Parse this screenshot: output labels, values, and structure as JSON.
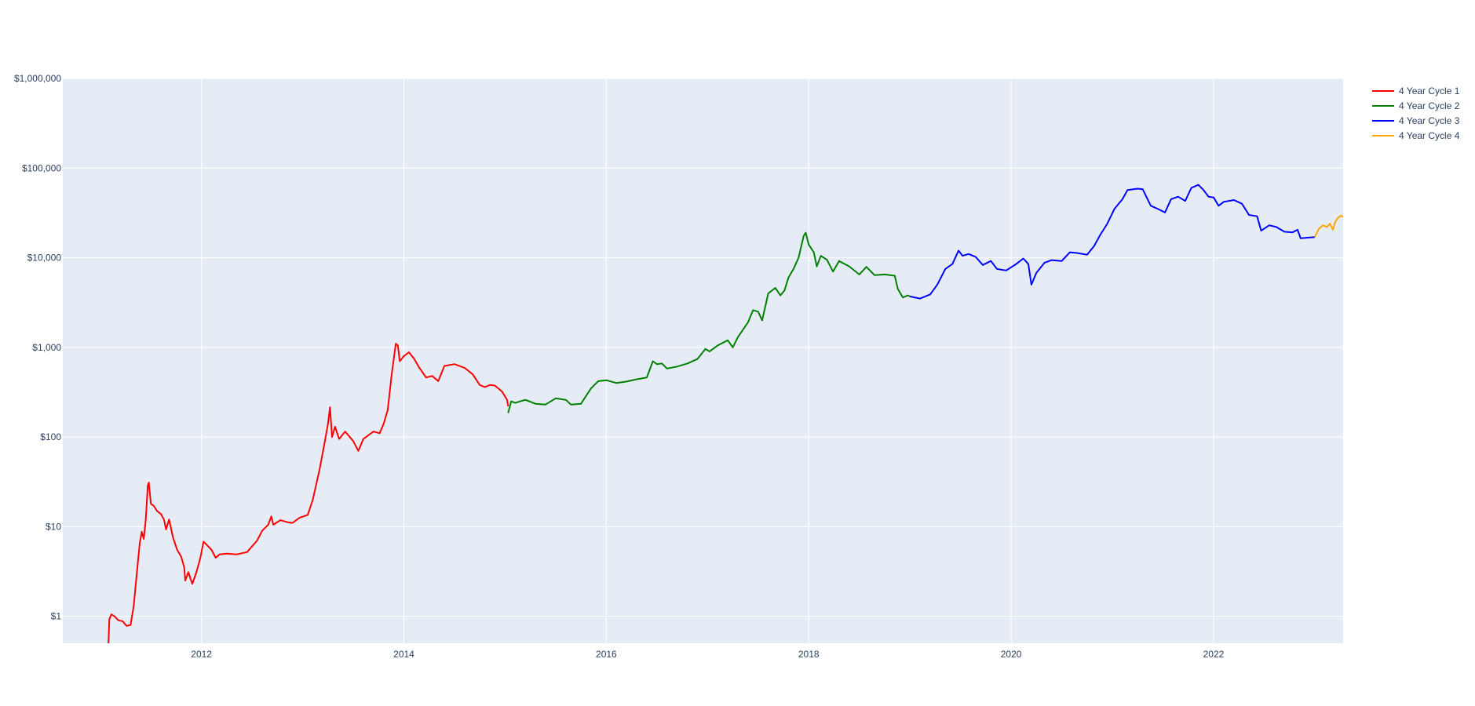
{
  "chart_data": {
    "type": "line",
    "title": "",
    "xlabel": "",
    "ylabel": "",
    "yscale": "log",
    "ylim": [
      0.5,
      1000000
    ],
    "xlim": [
      2010.63,
      2023.28
    ],
    "grid": true,
    "legend_position": "right-top",
    "x_ticks": [
      "2012",
      "2014",
      "2016",
      "2018",
      "2020",
      "2022"
    ],
    "x_tick_values": [
      2012,
      2014,
      2016,
      2018,
      2020,
      2022
    ],
    "y_ticks": [
      "$1",
      "$10",
      "$100",
      "$1,000",
      "$10,000",
      "$100,000",
      "$1,000,000"
    ],
    "y_tick_values": [
      1,
      10,
      100,
      1000,
      10000,
      100000,
      1000000
    ],
    "series": [
      {
        "name": "4 Year Cycle 1",
        "color": "#ff0000",
        "points": [
          [
            2011.08,
            0.45
          ],
          [
            2011.09,
            0.93
          ],
          [
            2011.11,
            1.05
          ],
          [
            2011.14,
            1.0
          ],
          [
            2011.18,
            0.9
          ],
          [
            2011.22,
            0.88
          ],
          [
            2011.26,
            0.78
          ],
          [
            2011.3,
            0.8
          ],
          [
            2011.33,
            1.3
          ],
          [
            2011.37,
            3.8
          ],
          [
            2011.39,
            6.5
          ],
          [
            2011.41,
            8.8
          ],
          [
            2011.43,
            7.3
          ],
          [
            2011.45,
            12
          ],
          [
            2011.47,
            29
          ],
          [
            2011.48,
            31
          ],
          [
            2011.5,
            18
          ],
          [
            2011.53,
            17
          ],
          [
            2011.56,
            15
          ],
          [
            2011.6,
            13.8
          ],
          [
            2011.63,
            12
          ],
          [
            2011.65,
            9.3
          ],
          [
            2011.68,
            12
          ],
          [
            2011.72,
            7.5
          ],
          [
            2011.76,
            5.5
          ],
          [
            2011.8,
            4.6
          ],
          [
            2011.83,
            3.5
          ],
          [
            2011.84,
            2.5
          ],
          [
            2011.87,
            3.1
          ],
          [
            2011.91,
            2.3
          ],
          [
            2011.95,
            3.1
          ],
          [
            2011.99,
            4.5
          ],
          [
            2012.02,
            6.8
          ],
          [
            2012.05,
            6.3
          ],
          [
            2012.1,
            5.5
          ],
          [
            2012.14,
            4.5
          ],
          [
            2012.18,
            4.9
          ],
          [
            2012.25,
            5.0
          ],
          [
            2012.35,
            4.9
          ],
          [
            2012.45,
            5.2
          ],
          [
            2012.55,
            7.0
          ],
          [
            2012.6,
            9.0
          ],
          [
            2012.66,
            10.5
          ],
          [
            2012.69,
            13
          ],
          [
            2012.71,
            10.5
          ],
          [
            2012.78,
            11.8
          ],
          [
            2012.85,
            11.2
          ],
          [
            2012.9,
            11
          ],
          [
            2012.97,
            12.6
          ],
          [
            2013.05,
            13.5
          ],
          [
            2013.1,
            20
          ],
          [
            2013.17,
            45
          ],
          [
            2013.22,
            90
          ],
          [
            2013.25,
            140
          ],
          [
            2013.27,
            215
          ],
          [
            2013.29,
            100
          ],
          [
            2013.32,
            130
          ],
          [
            2013.36,
            95
          ],
          [
            2013.42,
            115
          ],
          [
            2013.5,
            90
          ],
          [
            2013.55,
            70
          ],
          [
            2013.6,
            95
          ],
          [
            2013.7,
            115
          ],
          [
            2013.76,
            110
          ],
          [
            2013.8,
            140
          ],
          [
            2013.84,
            200
          ],
          [
            2013.88,
            500
          ],
          [
            2013.92,
            1100
          ],
          [
            2013.94,
            1050
          ],
          [
            2013.96,
            700
          ],
          [
            2014.0,
            800
          ],
          [
            2014.05,
            880
          ],
          [
            2014.1,
            750
          ],
          [
            2014.15,
            600
          ],
          [
            2014.22,
            460
          ],
          [
            2014.28,
            480
          ],
          [
            2014.34,
            420
          ],
          [
            2014.4,
            620
          ],
          [
            2014.5,
            650
          ],
          [
            2014.6,
            590
          ],
          [
            2014.68,
            500
          ],
          [
            2014.75,
            380
          ],
          [
            2014.8,
            360
          ],
          [
            2014.85,
            380
          ],
          [
            2014.9,
            375
          ],
          [
            2014.97,
            320
          ],
          [
            2015.02,
            260
          ],
          [
            2015.03,
            220
          ]
        ]
      },
      {
        "name": "4 Year Cycle 2",
        "color": "#008000",
        "points": [
          [
            2015.03,
            185
          ],
          [
            2015.06,
            250
          ],
          [
            2015.1,
            240
          ],
          [
            2015.2,
            260
          ],
          [
            2015.3,
            235
          ],
          [
            2015.4,
            230
          ],
          [
            2015.5,
            270
          ],
          [
            2015.6,
            260
          ],
          [
            2015.65,
            230
          ],
          [
            2015.75,
            235
          ],
          [
            2015.85,
            350
          ],
          [
            2015.92,
            420
          ],
          [
            2016.0,
            430
          ],
          [
            2016.1,
            400
          ],
          [
            2016.2,
            415
          ],
          [
            2016.3,
            440
          ],
          [
            2016.4,
            460
          ],
          [
            2016.46,
            700
          ],
          [
            2016.5,
            650
          ],
          [
            2016.55,
            660
          ],
          [
            2016.6,
            580
          ],
          [
            2016.7,
            610
          ],
          [
            2016.8,
            660
          ],
          [
            2016.9,
            740
          ],
          [
            2016.98,
            960
          ],
          [
            2017.02,
            900
          ],
          [
            2017.1,
            1050
          ],
          [
            2017.2,
            1200
          ],
          [
            2017.25,
            1000
          ],
          [
            2017.3,
            1300
          ],
          [
            2017.4,
            1900
          ],
          [
            2017.45,
            2600
          ],
          [
            2017.5,
            2500
          ],
          [
            2017.54,
            2000
          ],
          [
            2017.6,
            4000
          ],
          [
            2017.67,
            4600
          ],
          [
            2017.72,
            3800
          ],
          [
            2017.76,
            4300
          ],
          [
            2017.8,
            6000
          ],
          [
            2017.85,
            7500
          ],
          [
            2017.9,
            10000
          ],
          [
            2017.95,
            17500
          ],
          [
            2017.97,
            19000
          ],
          [
            2018.0,
            14000
          ],
          [
            2018.05,
            11500
          ],
          [
            2018.08,
            8000
          ],
          [
            2018.12,
            10500
          ],
          [
            2018.18,
            9500
          ],
          [
            2018.24,
            7000
          ],
          [
            2018.3,
            9200
          ],
          [
            2018.4,
            8000
          ],
          [
            2018.5,
            6500
          ],
          [
            2018.57,
            7900
          ],
          [
            2018.65,
            6400
          ],
          [
            2018.75,
            6500
          ],
          [
            2018.85,
            6300
          ],
          [
            2018.88,
            4500
          ],
          [
            2018.93,
            3600
          ],
          [
            2018.98,
            3800
          ],
          [
            2019.0,
            3700
          ]
        ]
      },
      {
        "name": "4 Year Cycle 3",
        "color": "#0000ff",
        "points": [
          [
            2019.0,
            3700
          ],
          [
            2019.1,
            3500
          ],
          [
            2019.2,
            3900
          ],
          [
            2019.27,
            5000
          ],
          [
            2019.35,
            7500
          ],
          [
            2019.42,
            8500
          ],
          [
            2019.48,
            12000
          ],
          [
            2019.52,
            10500
          ],
          [
            2019.58,
            11000
          ],
          [
            2019.65,
            10200
          ],
          [
            2019.72,
            8300
          ],
          [
            2019.8,
            9200
          ],
          [
            2019.86,
            7500
          ],
          [
            2019.95,
            7200
          ],
          [
            2020.05,
            8500
          ],
          [
            2020.12,
            9800
          ],
          [
            2020.17,
            8500
          ],
          [
            2020.2,
            5000
          ],
          [
            2020.25,
            6800
          ],
          [
            2020.33,
            8800
          ],
          [
            2020.4,
            9400
          ],
          [
            2020.5,
            9200
          ],
          [
            2020.58,
            11500
          ],
          [
            2020.65,
            11300
          ],
          [
            2020.75,
            10800
          ],
          [
            2020.82,
            13500
          ],
          [
            2020.88,
            18000
          ],
          [
            2020.95,
            24000
          ],
          [
            2021.02,
            35000
          ],
          [
            2021.1,
            45000
          ],
          [
            2021.15,
            57000
          ],
          [
            2021.25,
            59000
          ],
          [
            2021.3,
            58000
          ],
          [
            2021.38,
            38000
          ],
          [
            2021.45,
            35000
          ],
          [
            2021.52,
            32000
          ],
          [
            2021.58,
            45000
          ],
          [
            2021.65,
            48000
          ],
          [
            2021.72,
            43000
          ],
          [
            2021.78,
            60000
          ],
          [
            2021.85,
            65000
          ],
          [
            2021.9,
            57000
          ],
          [
            2021.95,
            48000
          ],
          [
            2022.0,
            47000
          ],
          [
            2022.05,
            38000
          ],
          [
            2022.1,
            42000
          ],
          [
            2022.2,
            44000
          ],
          [
            2022.28,
            40000
          ],
          [
            2022.35,
            30000
          ],
          [
            2022.43,
            29000
          ],
          [
            2022.47,
            20000
          ],
          [
            2022.55,
            23000
          ],
          [
            2022.62,
            22000
          ],
          [
            2022.7,
            19500
          ],
          [
            2022.78,
            19200
          ],
          [
            2022.83,
            20500
          ],
          [
            2022.86,
            16500
          ],
          [
            2022.95,
            16800
          ],
          [
            2023.0,
            17000
          ]
        ]
      },
      {
        "name": "4 Year Cycle 4",
        "color": "#ffa500",
        "points": [
          [
            2023.0,
            17000
          ],
          [
            2023.04,
            21000
          ],
          [
            2023.08,
            23000
          ],
          [
            2023.12,
            22000
          ],
          [
            2023.15,
            24000
          ],
          [
            2023.18,
            20500
          ],
          [
            2023.2,
            25000
          ],
          [
            2023.23,
            28000
          ],
          [
            2023.26,
            29500
          ],
          [
            2023.28,
            28500
          ]
        ]
      }
    ]
  },
  "legend": {
    "items": [
      {
        "label": "4 Year Cycle 1",
        "color": "#ff0000"
      },
      {
        "label": "4 Year Cycle 2",
        "color": "#008000"
      },
      {
        "label": "4 Year Cycle 3",
        "color": "#0000ff"
      },
      {
        "label": "4 Year Cycle 4",
        "color": "#ffa500"
      }
    ]
  },
  "colors": {
    "plot_bg": "#e5ecf6",
    "grid": "#ffffff",
    "tick_text": "#2a3f5f"
  }
}
